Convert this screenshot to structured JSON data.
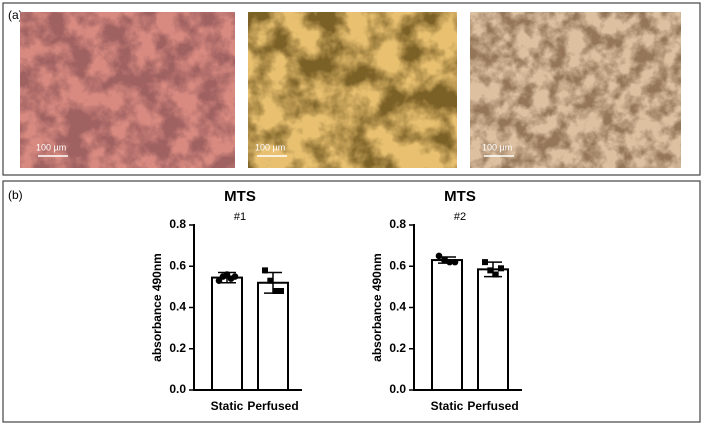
{
  "panel_a": {
    "label": "(a)",
    "scale_bars": [
      "100 µm",
      "100 µm",
      "100 µm"
    ]
  },
  "panel_b": {
    "label": "(b)"
  },
  "chart_data": [
    {
      "type": "bar",
      "title": "MTS",
      "subtitle": "#1",
      "y_label": "absorbance 490nm",
      "categories": [
        "Static",
        "Perfused"
      ],
      "values": [
        0.545,
        0.52
      ],
      "errors": [
        0.025,
        0.05
      ],
      "points": [
        [
          0.53,
          0.55,
          0.56,
          0.54,
          0.55
        ],
        [
          0.58,
          0.53,
          0.48,
          0.48
        ]
      ],
      "color": "#ffffff",
      "ylim": [
        0,
        0.8
      ],
      "yticks": [
        {
          "value": 0,
          "label": "0.0"
        },
        0.2,
        0.4,
        0.6,
        0.8
      ]
    },
    {
      "type": "bar",
      "title": "MTS",
      "subtitle": "#2",
      "y_label": "absorbance 490nm",
      "categories": [
        "Static",
        "Perfused"
      ],
      "values": [
        0.63,
        0.585
      ],
      "errors": [
        0.015,
        0.035
      ],
      "points": [
        [
          0.65,
          0.63,
          0.62,
          0.62
        ],
        [
          0.62,
          0.58,
          0.56,
          0.59
        ]
      ],
      "color": "#ffffff",
      "ylim": [
        0,
        0.8
      ],
      "yticks": [
        {
          "value": 0,
          "label": "0.0"
        },
        0.2,
        0.4,
        0.6,
        0.8
      ]
    }
  ]
}
